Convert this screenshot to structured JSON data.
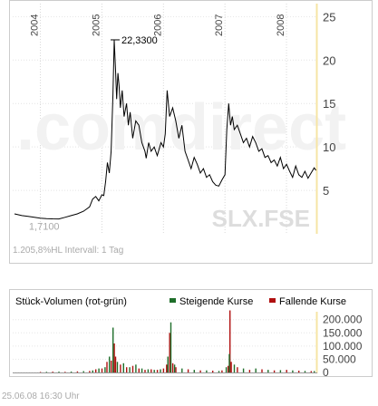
{
  "chart_data": [
    {
      "type": "line",
      "panel": "price",
      "years": [
        "2004",
        "2005",
        "2006",
        "2007",
        "2008"
      ],
      "y_ticks": [
        "5",
        "10",
        "15",
        "20",
        "25"
      ],
      "ylim": [
        0,
        26.5
      ],
      "grid": true,
      "watermark_text": ".comdirect",
      "symbol": "SLX.FSE",
      "low_label": "1,7100",
      "high_label": "22,3300",
      "stats_label": "1.205,8%HL Intervall: 1 Tag",
      "series": [
        {
          "x": [
            2003.58,
            2003.7,
            2003.8,
            2003.9,
            2004.0,
            2004.1,
            2004.2,
            2004.3,
            2004.4,
            2004.5,
            2004.6,
            2004.7,
            2004.8,
            2004.85,
            2004.9,
            2004.95,
            2005.0,
            2005.03,
            2005.06,
            2005.09,
            2005.12,
            2005.15,
            2005.18,
            2005.2,
            2005.22,
            2005.24,
            2005.26,
            2005.28,
            2005.3,
            2005.33,
            2005.36,
            2005.4,
            2005.43,
            2005.46,
            2005.5,
            2005.55,
            2005.6,
            2005.65,
            2005.7,
            2005.72,
            2005.76,
            2005.8,
            2005.85,
            2005.9,
            2005.96,
            2006.0,
            2006.03,
            2006.06,
            2006.1,
            2006.15,
            2006.2,
            2006.25,
            2006.3,
            2006.35,
            2006.4,
            2006.45,
            2006.5,
            2006.55,
            2006.6,
            2006.65,
            2006.7,
            2006.75,
            2006.8,
            2006.85,
            2006.9,
            2006.95,
            2007.0,
            2007.03,
            2007.06,
            2007.09,
            2007.12,
            2007.15,
            2007.2,
            2007.25,
            2007.3,
            2007.35,
            2007.4,
            2007.45,
            2007.5,
            2007.55,
            2007.6,
            2007.65,
            2007.7,
            2007.75,
            2007.8,
            2007.85,
            2007.9,
            2007.95,
            2008.0,
            2008.05,
            2008.1,
            2008.15,
            2008.2,
            2008.25,
            2008.3,
            2008.35,
            2008.4,
            2008.45,
            2008.48
          ],
          "values": [
            2.3,
            2.1,
            2.0,
            1.9,
            1.8,
            1.75,
            1.72,
            1.71,
            1.9,
            2.1,
            2.3,
            2.6,
            3.1,
            4.0,
            4.3,
            3.8,
            4.5,
            4.4,
            6.0,
            8.2,
            7.0,
            9.5,
            16.0,
            22.33,
            19.0,
            15.5,
            18.5,
            17.0,
            14.5,
            16.5,
            13.5,
            15.0,
            12.5,
            14.0,
            11.0,
            13.0,
            12.5,
            10.5,
            9.5,
            8.7,
            10.5,
            9.5,
            10.0,
            9.0,
            10.5,
            10.0,
            11.5,
            16.5,
            13.5,
            14.5,
            13.0,
            11.0,
            12.5,
            9.5,
            8.5,
            7.5,
            8.8,
            8.0,
            7.0,
            7.5,
            6.5,
            6.8,
            6.0,
            5.6,
            5.5,
            6.2,
            6.8,
            12.0,
            15.0,
            12.5,
            13.5,
            12.0,
            12.5,
            11.5,
            10.5,
            11.0,
            10.0,
            11.2,
            10.5,
            9.5,
            9.8,
            8.8,
            9.0,
            8.2,
            8.5,
            7.8,
            8.8,
            7.5,
            8.0,
            7.2,
            6.5,
            7.8,
            6.8,
            6.5,
            7.2,
            6.4,
            7.0,
            7.6,
            7.3
          ]
        }
      ]
    },
    {
      "type": "bar",
      "panel": "volume",
      "title": "Stück-Volumen (rot-grün)",
      "legend": [
        {
          "name": "Steigende Kurse",
          "color": "#1e6e2a"
        },
        {
          "name": "Fallende Kurse",
          "color": "#b01010"
        }
      ],
      "y_ticks": [
        "0",
        "50.000",
        "100.000",
        "150.000",
        "200.000"
      ],
      "ylim": [
        0,
        230000
      ],
      "grid": true,
      "series": [
        {
          "name": "Fallende Kurse",
          "x": [
            2004.0,
            2004.2,
            2004.4,
            2004.6,
            2004.8,
            2004.9,
            2005.0,
            2005.08,
            2005.15,
            2005.2,
            2005.22,
            2005.3,
            2005.4,
            2005.5,
            2005.6,
            2005.7,
            2005.8,
            2005.9,
            2006.0,
            2006.05,
            2006.1,
            2006.15,
            2006.2,
            2006.4,
            2006.6,
            2006.8,
            2006.95,
            2007.05,
            2007.08,
            2007.1,
            2007.2,
            2007.4,
            2007.6,
            2007.8,
            2008.0,
            2008.2,
            2008.4
          ],
          "values": [
            2000,
            3000,
            2500,
            4000,
            6000,
            12000,
            15000,
            40000,
            45000,
            110000,
            60000,
            30000,
            20000,
            25000,
            15000,
            10000,
            12000,
            10000,
            15000,
            30000,
            150000,
            35000,
            20000,
            12000,
            8000,
            7000,
            8000,
            25000,
            235000,
            40000,
            20000,
            10000,
            12000,
            8000,
            10000,
            7000,
            5000
          ]
        },
        {
          "name": "Steigende Kurse",
          "x": [
            2004.1,
            2004.3,
            2004.5,
            2004.7,
            2004.85,
            2004.95,
            2005.05,
            2005.12,
            2005.18,
            2005.25,
            2005.35,
            2005.45,
            2005.55,
            2005.65,
            2005.75,
            2005.85,
            2005.95,
            2006.07,
            2006.12,
            2006.18,
            2006.3,
            2006.5,
            2006.7,
            2006.9,
            2007.02,
            2007.07,
            2007.15,
            2007.3,
            2007.5,
            2007.7,
            2007.9,
            2008.1,
            2008.3,
            2008.45
          ],
          "values": [
            2500,
            3000,
            3500,
            5000,
            8000,
            15000,
            20000,
            60000,
            170000,
            40000,
            35000,
            20000,
            30000,
            15000,
            12000,
            10000,
            12000,
            60000,
            190000,
            30000,
            15000,
            10000,
            8000,
            6000,
            20000,
            70000,
            30000,
            15000,
            15000,
            10000,
            9000,
            8000,
            6000,
            5000
          ]
        }
      ],
      "footer": "25.06.08   16:30 Uhr"
    }
  ],
  "colors": {
    "price_line": "#000000",
    "gridline": "#cccccc",
    "panel_border": "#cccccc",
    "axis_highlight": "#f6e4a4",
    "watermark": "#f4f4f4",
    "watermark_accent": "#fde5b0",
    "muted_text": "#aaaaaa",
    "rising": "#1e6e2a",
    "falling": "#b01010"
  }
}
